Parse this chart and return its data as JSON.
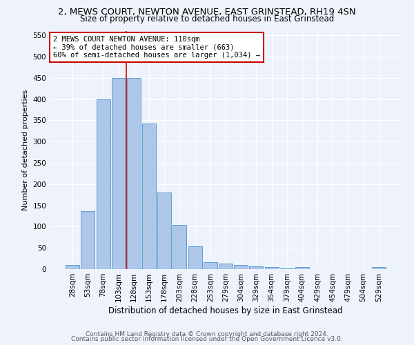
{
  "title": "2, MEWS COURT, NEWTON AVENUE, EAST GRINSTEAD, RH19 4SN",
  "subtitle": "Size of property relative to detached houses in East Grinstead",
  "xlabel": "Distribution of detached houses by size in East Grinstead",
  "ylabel": "Number of detached properties",
  "footer1": "Contains HM Land Registry data © Crown copyright and database right 2024.",
  "footer2": "Contains public sector information licensed under the Open Government Licence v3.0.",
  "bar_labels": [
    "28sqm",
    "53sqm",
    "78sqm",
    "103sqm",
    "128sqm",
    "153sqm",
    "178sqm",
    "203sqm",
    "228sqm",
    "253sqm",
    "279sqm",
    "304sqm",
    "329sqm",
    "354sqm",
    "379sqm",
    "404sqm",
    "429sqm",
    "454sqm",
    "479sqm",
    "504sqm",
    "529sqm"
  ],
  "bar_values": [
    10,
    137,
    400,
    450,
    450,
    342,
    180,
    104,
    53,
    17,
    13,
    10,
    6,
    5,
    2,
    5,
    0,
    0,
    0,
    0,
    5
  ],
  "bar_color": "#aec6e8",
  "bar_edge_color": "#5a9fd4",
  "property_line_x": 3.5,
  "annotation_text": "2 MEWS COURT NEWTON AVENUE: 110sqm\n← 39% of detached houses are smaller (663)\n60% of semi-detached houses are larger (1,034) →",
  "annotation_box_color": "#ffffff",
  "annotation_box_edge": "#cc0000",
  "vertical_line_color": "#cc0000",
  "ylim": [
    0,
    560
  ],
  "yticks": [
    0,
    50,
    100,
    150,
    200,
    250,
    300,
    350,
    400,
    450,
    500,
    550
  ],
  "title_fontsize": 9.5,
  "subtitle_fontsize": 8.5,
  "xlabel_fontsize": 8.5,
  "ylabel_fontsize": 8,
  "tick_fontsize": 7.5,
  "footer_fontsize": 6.5,
  "annotation_fontsize": 7.5,
  "background_color": "#eef2fa",
  "plot_background": "#eef2fa"
}
